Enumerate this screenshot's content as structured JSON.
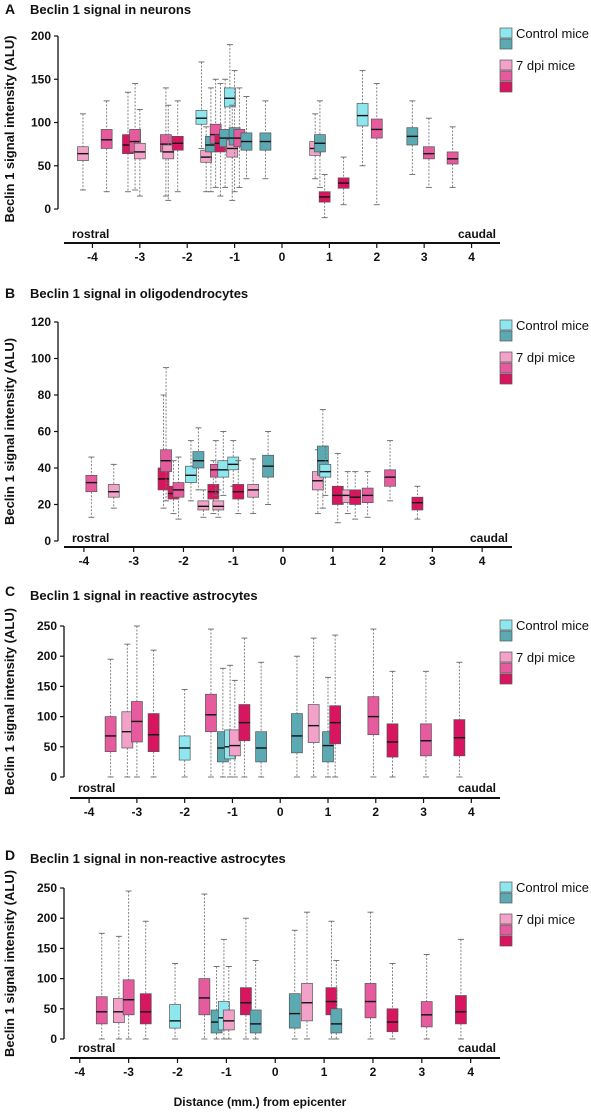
{
  "colors": {
    "control_light": "#8ee6ee",
    "control_dark": "#5ba9b3",
    "dpi_light": "#f2a2c8",
    "dpi_mid": "#e65a9e",
    "dpi_dark": "#d8155f"
  },
  "xlabel": "Distance (mm.) from epicenter",
  "chart_data": [
    {
      "type": "box",
      "panel_letter": "A",
      "title": "Beclin 1 signal in neurons",
      "ylabel": "Beclin 1 signal intensity (ALU)",
      "ylim": [
        -15,
        200
      ],
      "yticks": [
        0,
        50,
        100,
        150,
        200
      ],
      "xlim": [
        -4.6,
        4.6
      ],
      "xticks": [
        -4,
        -3,
        -2,
        -1,
        0,
        1,
        2,
        3,
        4
      ],
      "side_labels": {
        "left": "rostral",
        "right": "caudal"
      },
      "legend": [
        {
          "label": "Control mice",
          "colors": [
            "control_light",
            "control_dark"
          ]
        },
        {
          "label": "7 dpi mice",
          "colors": [
            "dpi_light",
            "dpi_mid",
            "dpi_dark"
          ]
        }
      ],
      "boxes": [
        {
          "x": -4.2,
          "c": "dpi_light",
          "q1": 56,
          "med": 64,
          "q3": 72,
          "lo": 22,
          "hi": 110
        },
        {
          "x": -3.7,
          "c": "dpi_mid",
          "q1": 70,
          "med": 80,
          "q3": 92,
          "lo": 20,
          "hi": 125
        },
        {
          "x": -3.25,
          "c": "dpi_dark",
          "q1": 64,
          "med": 74,
          "q3": 86,
          "lo": 20,
          "hi": 135
        },
        {
          "x": -3.1,
          "c": "dpi_mid",
          "q1": 66,
          "med": 78,
          "q3": 92,
          "lo": 22,
          "hi": 145
        },
        {
          "x": -3.0,
          "c": "dpi_light",
          "q1": 58,
          "med": 66,
          "q3": 76,
          "lo": 15,
          "hi": 115
        },
        {
          "x": -2.45,
          "c": "dpi_mid",
          "q1": 66,
          "med": 75,
          "q3": 86,
          "lo": 15,
          "hi": 140
        },
        {
          "x": -2.4,
          "c": "dpi_light",
          "q1": 58,
          "med": 66,
          "q3": 74,
          "lo": 10,
          "hi": 120
        },
        {
          "x": -2.2,
          "c": "dpi_dark",
          "q1": 68,
          "med": 76,
          "q3": 84,
          "lo": 20,
          "hi": 125
        },
        {
          "x": -1.7,
          "c": "control_light",
          "q1": 98,
          "med": 105,
          "q3": 114,
          "lo": 70,
          "hi": 170
        },
        {
          "x": -1.6,
          "c": "dpi_light",
          "q1": 54,
          "med": 60,
          "q3": 68,
          "lo": 20,
          "hi": 95
        },
        {
          "x": -1.5,
          "c": "control_dark",
          "q1": 66,
          "med": 74,
          "q3": 84,
          "lo": 20,
          "hi": 140
        },
        {
          "x": -1.4,
          "c": "dpi_mid",
          "q1": 76,
          "med": 86,
          "q3": 98,
          "lo": 25,
          "hi": 150
        },
        {
          "x": -1.3,
          "c": "dpi_dark",
          "q1": 66,
          "med": 76,
          "q3": 86,
          "lo": 15,
          "hi": 145
        },
        {
          "x": -1.2,
          "c": "control_dark",
          "q1": 72,
          "med": 82,
          "q3": 92,
          "lo": 25,
          "hi": 150
        },
        {
          "x": -1.1,
          "c": "control_light",
          "q1": 118,
          "med": 128,
          "q3": 140,
          "lo": 75,
          "hi": 190
        },
        {
          "x": -1.05,
          "c": "dpi_light",
          "q1": 60,
          "med": 70,
          "q3": 80,
          "lo": 10,
          "hi": 120
        },
        {
          "x": -1.0,
          "c": "control_dark",
          "q1": 74,
          "med": 82,
          "q3": 94,
          "lo": 20,
          "hi": 160
        },
        {
          "x": -0.9,
          "c": "dpi_mid",
          "q1": 72,
          "med": 82,
          "q3": 92,
          "lo": 25,
          "hi": 140
        },
        {
          "x": -0.75,
          "c": "control_dark",
          "q1": 68,
          "med": 78,
          "q3": 88,
          "lo": 35,
          "hi": 130
        },
        {
          "x": -0.35,
          "c": "control_dark",
          "q1": 68,
          "med": 78,
          "q3": 88,
          "lo": 35,
          "hi": 125
        },
        {
          "x": 0.7,
          "c": "dpi_light",
          "q1": 62,
          "med": 70,
          "q3": 78,
          "lo": 35,
          "hi": 110
        },
        {
          "x": 0.8,
          "c": "control_dark",
          "q1": 66,
          "med": 76,
          "q3": 86,
          "lo": 25,
          "hi": 125
        },
        {
          "x": 0.9,
          "c": "dpi_dark",
          "q1": 8,
          "med": 14,
          "q3": 20,
          "lo": -10,
          "hi": 40
        },
        {
          "x": 1.3,
          "c": "dpi_dark",
          "q1": 24,
          "med": 30,
          "q3": 36,
          "lo": 5,
          "hi": 60
        },
        {
          "x": 1.7,
          "c": "control_light",
          "q1": 96,
          "med": 108,
          "q3": 122,
          "lo": 50,
          "hi": 160
        },
        {
          "x": 2.0,
          "c": "dpi_mid",
          "q1": 82,
          "med": 92,
          "q3": 104,
          "lo": 5,
          "hi": 145
        },
        {
          "x": 2.75,
          "c": "control_dark",
          "q1": 74,
          "med": 84,
          "q3": 94,
          "lo": 40,
          "hi": 125
        },
        {
          "x": 3.1,
          "c": "dpi_mid",
          "q1": 58,
          "med": 64,
          "q3": 72,
          "lo": 25,
          "hi": 105
        },
        {
          "x": 3.6,
          "c": "dpi_mid",
          "q1": 52,
          "med": 58,
          "q3": 66,
          "lo": 25,
          "hi": 95
        }
      ]
    },
    {
      "type": "box",
      "panel_letter": "B",
      "title": "Beclin 1 signal in oligodendrocytes",
      "ylabel": "Beclin 1 signal intensity (ALU)",
      "ylim": [
        0,
        120
      ],
      "yticks": [
        0,
        20,
        40,
        60,
        80,
        100,
        120
      ],
      "xlim": [
        -4.4,
        4.6
      ],
      "xticks": [
        -4,
        -3,
        -2,
        -1,
        0,
        1,
        2,
        3,
        4
      ],
      "side_labels": {
        "left": "rostral",
        "right": "caudal"
      },
      "legend": [
        {
          "label": "Control mice",
          "colors": [
            "control_light",
            "control_dark"
          ]
        },
        {
          "label": "7 dpi mice",
          "colors": [
            "dpi_light",
            "dpi_mid",
            "dpi_dark"
          ]
        }
      ],
      "boxes": [
        {
          "x": -3.85,
          "c": "dpi_mid",
          "q1": 27,
          "med": 32,
          "q3": 36,
          "lo": 13,
          "hi": 46
        },
        {
          "x": -3.4,
          "c": "dpi_light",
          "q1": 24,
          "med": 27,
          "q3": 31,
          "lo": 18,
          "hi": 42
        },
        {
          "x": -2.4,
          "c": "dpi_dark",
          "q1": 28,
          "med": 34,
          "q3": 40,
          "lo": 18,
          "hi": 80
        },
        {
          "x": -2.35,
          "c": "dpi_mid",
          "q1": 38,
          "med": 44,
          "q3": 50,
          "lo": 22,
          "hi": 95
        },
        {
          "x": -2.2,
          "c": "dpi_dark",
          "q1": 23,
          "med": 26,
          "q3": 30,
          "lo": 15,
          "hi": 44
        },
        {
          "x": -2.1,
          "c": "dpi_mid",
          "q1": 24,
          "med": 28,
          "q3": 32,
          "lo": 12,
          "hi": 46
        },
        {
          "x": -1.85,
          "c": "control_light",
          "q1": 32,
          "med": 36,
          "q3": 41,
          "lo": 22,
          "hi": 55
        },
        {
          "x": -1.7,
          "c": "control_dark",
          "q1": 40,
          "med": 44,
          "q3": 49,
          "lo": 28,
          "hi": 62
        },
        {
          "x": -1.6,
          "c": "dpi_light",
          "q1": 17,
          "med": 19,
          "q3": 22,
          "lo": 13,
          "hi": 28
        },
        {
          "x": -1.4,
          "c": "dpi_dark",
          "q1": 23,
          "med": 27,
          "q3": 31,
          "lo": 15,
          "hi": 44
        },
        {
          "x": -1.35,
          "c": "dpi_mid",
          "q1": 35,
          "med": 39,
          "q3": 42,
          "lo": 25,
          "hi": 55
        },
        {
          "x": -1.3,
          "c": "dpi_light",
          "q1": 17,
          "med": 19,
          "q3": 22,
          "lo": 13,
          "hi": 28
        },
        {
          "x": -1.2,
          "c": "control_light",
          "q1": 35,
          "med": 39,
          "q3": 44,
          "lo": 25,
          "hi": 60
        },
        {
          "x": -1.0,
          "c": "control_light",
          "q1": 39,
          "med": 42,
          "q3": 46,
          "lo": 30,
          "hi": 55
        },
        {
          "x": -0.9,
          "c": "dpi_dark",
          "q1": 23,
          "med": 27,
          "q3": 31,
          "lo": 15,
          "hi": 44
        },
        {
          "x": -0.6,
          "c": "dpi_light",
          "q1": 24,
          "med": 28,
          "q3": 31,
          "lo": 15,
          "hi": 45
        },
        {
          "x": -0.3,
          "c": "control_dark",
          "q1": 35,
          "med": 41,
          "q3": 47,
          "lo": 20,
          "hi": 60
        },
        {
          "x": 0.7,
          "c": "dpi_light",
          "q1": 28,
          "med": 33,
          "q3": 38,
          "lo": 15,
          "hi": 50
        },
        {
          "x": 0.8,
          "c": "control_dark",
          "q1": 36,
          "med": 44,
          "q3": 52,
          "lo": 18,
          "hi": 72
        },
        {
          "x": 0.85,
          "c": "control_light",
          "q1": 35,
          "med": 38,
          "q3": 42,
          "lo": 25,
          "hi": 52
        },
        {
          "x": 1.1,
          "c": "dpi_dark",
          "q1": 20,
          "med": 25,
          "q3": 30,
          "lo": 10,
          "hi": 48
        },
        {
          "x": 1.3,
          "c": "dpi_light",
          "q1": 21,
          "med": 25,
          "q3": 28,
          "lo": 15,
          "hi": 38
        },
        {
          "x": 1.45,
          "c": "dpi_dark",
          "q1": 20,
          "med": 24,
          "q3": 28,
          "lo": 12,
          "hi": 38
        },
        {
          "x": 1.7,
          "c": "dpi_mid",
          "q1": 21,
          "med": 25,
          "q3": 29,
          "lo": 13,
          "hi": 38
        },
        {
          "x": 2.15,
          "c": "dpi_mid",
          "q1": 30,
          "med": 35,
          "q3": 39,
          "lo": 22,
          "hi": 55
        },
        {
          "x": 2.7,
          "c": "dpi_dark",
          "q1": 17,
          "med": 21,
          "q3": 24,
          "lo": 12,
          "hi": 30
        }
      ]
    },
    {
      "type": "box",
      "panel_letter": "C",
      "title": "Beclin 1 signal in reactive astrocytes",
      "ylabel": "Beclin 1 signal intensity (ALU)",
      "ylim": [
        -5,
        255
      ],
      "yticks": [
        0,
        50,
        100,
        150,
        200,
        250
      ],
      "xlim": [
        -4.4,
        4.6
      ],
      "xticks": [
        -4,
        -3,
        -2,
        -1,
        0,
        1,
        2,
        3,
        4
      ],
      "side_labels": {
        "left": "rostral",
        "right": "caudal"
      },
      "legend": [
        {
          "label": "Control mice",
          "colors": [
            "control_light",
            "control_dark"
          ]
        },
        {
          "label": "7 dpi mice",
          "colors": [
            "dpi_light",
            "dpi_mid",
            "dpi_dark"
          ]
        }
      ],
      "boxes": [
        {
          "x": -3.55,
          "c": "dpi_mid",
          "q1": 42,
          "med": 68,
          "q3": 100,
          "lo": 0,
          "hi": 195
        },
        {
          "x": -3.2,
          "c": "dpi_light",
          "q1": 48,
          "med": 75,
          "q3": 108,
          "lo": 0,
          "hi": 220
        },
        {
          "x": -3.0,
          "c": "dpi_mid",
          "q1": 58,
          "med": 92,
          "q3": 125,
          "lo": 0,
          "hi": 250
        },
        {
          "x": -2.65,
          "c": "dpi_dark",
          "q1": 42,
          "med": 70,
          "q3": 105,
          "lo": 0,
          "hi": 210
        },
        {
          "x": -2.0,
          "c": "control_light",
          "q1": 28,
          "med": 48,
          "q3": 68,
          "lo": 0,
          "hi": 145
        },
        {
          "x": -1.45,
          "c": "dpi_mid",
          "q1": 75,
          "med": 103,
          "q3": 137,
          "lo": 0,
          "hi": 245
        },
        {
          "x": -1.2,
          "c": "control_dark",
          "q1": 25,
          "med": 48,
          "q3": 75,
          "lo": 0,
          "hi": 180
        },
        {
          "x": -1.05,
          "c": "control_light",
          "q1": 30,
          "med": 50,
          "q3": 78,
          "lo": 0,
          "hi": 185
        },
        {
          "x": -0.95,
          "c": "dpi_light",
          "q1": 35,
          "med": 52,
          "q3": 78,
          "lo": 0,
          "hi": 160
        },
        {
          "x": -0.75,
          "c": "dpi_dark",
          "q1": 60,
          "med": 90,
          "q3": 120,
          "lo": 0,
          "hi": 230
        },
        {
          "x": -0.4,
          "c": "control_dark",
          "q1": 25,
          "med": 48,
          "q3": 75,
          "lo": 0,
          "hi": 190
        },
        {
          "x": 0.35,
          "c": "control_dark",
          "q1": 40,
          "med": 68,
          "q3": 105,
          "lo": 0,
          "hi": 200
        },
        {
          "x": 0.7,
          "c": "dpi_light",
          "q1": 57,
          "med": 85,
          "q3": 120,
          "lo": 0,
          "hi": 230
        },
        {
          "x": 1.0,
          "c": "control_dark",
          "q1": 25,
          "med": 52,
          "q3": 75,
          "lo": 0,
          "hi": 165
        },
        {
          "x": 1.15,
          "c": "dpi_dark",
          "q1": 55,
          "med": 90,
          "q3": 118,
          "lo": 0,
          "hi": 235
        },
        {
          "x": 1.95,
          "c": "dpi_mid",
          "q1": 70,
          "med": 100,
          "q3": 133,
          "lo": 0,
          "hi": 245
        },
        {
          "x": 2.35,
          "c": "dpi_dark",
          "q1": 33,
          "med": 58,
          "q3": 88,
          "lo": 0,
          "hi": 175
        },
        {
          "x": 3.05,
          "c": "dpi_mid",
          "q1": 35,
          "med": 60,
          "q3": 88,
          "lo": 0,
          "hi": 175
        },
        {
          "x": 3.75,
          "c": "dpi_dark",
          "q1": 35,
          "med": 65,
          "q3": 95,
          "lo": 0,
          "hi": 190
        }
      ]
    },
    {
      "type": "box",
      "panel_letter": "D",
      "title": "Beclin 1 signal in non-reactive astrocytes",
      "ylabel": "Beclin 1 signal intensity (ALU)",
      "ylim": [
        -5,
        255
      ],
      "yticks": [
        0,
        50,
        100,
        150,
        200,
        250
      ],
      "xlim": [
        -4.2,
        4.6
      ],
      "xticks": [
        -4,
        -3,
        -2,
        -1,
        0,
        1,
        2,
        3,
        4
      ],
      "side_labels": {
        "left": "rostral",
        "right": "caudal"
      },
      "legend": [
        {
          "label": "Control mice",
          "colors": [
            "control_light",
            "control_dark"
          ]
        },
        {
          "label": "7 dpi mice",
          "colors": [
            "dpi_light",
            "dpi_mid",
            "dpi_dark"
          ]
        }
      ],
      "boxes": [
        {
          "x": -3.55,
          "c": "dpi_mid",
          "q1": 25,
          "med": 45,
          "q3": 70,
          "lo": 0,
          "hi": 175
        },
        {
          "x": -3.2,
          "c": "dpi_light",
          "q1": 27,
          "med": 45,
          "q3": 67,
          "lo": 0,
          "hi": 170
        },
        {
          "x": -3.0,
          "c": "dpi_mid",
          "q1": 40,
          "med": 65,
          "q3": 98,
          "lo": 0,
          "hi": 245
        },
        {
          "x": -2.65,
          "c": "dpi_dark",
          "q1": 25,
          "med": 45,
          "q3": 75,
          "lo": 0,
          "hi": 195
        },
        {
          "x": -2.05,
          "c": "control_light",
          "q1": 18,
          "med": 30,
          "q3": 57,
          "lo": 0,
          "hi": 125
        },
        {
          "x": -1.45,
          "c": "dpi_mid",
          "q1": 40,
          "med": 68,
          "q3": 100,
          "lo": 0,
          "hi": 240
        },
        {
          "x": -1.2,
          "c": "control_dark",
          "q1": 10,
          "med": 28,
          "q3": 48,
          "lo": 0,
          "hi": 120
        },
        {
          "x": -1.05,
          "c": "control_light",
          "q1": 15,
          "med": 35,
          "q3": 62,
          "lo": 0,
          "hi": 165
        },
        {
          "x": -0.95,
          "c": "dpi_light",
          "q1": 15,
          "med": 30,
          "q3": 48,
          "lo": 0,
          "hi": 120
        },
        {
          "x": -0.6,
          "c": "dpi_dark",
          "q1": 40,
          "med": 60,
          "q3": 85,
          "lo": 0,
          "hi": 200
        },
        {
          "x": -0.4,
          "c": "control_dark",
          "q1": 10,
          "med": 25,
          "q3": 48,
          "lo": 0,
          "hi": 130
        },
        {
          "x": 0.4,
          "c": "control_dark",
          "q1": 18,
          "med": 42,
          "q3": 75,
          "lo": 0,
          "hi": 180
        },
        {
          "x": 0.65,
          "c": "dpi_light",
          "q1": 30,
          "med": 60,
          "q3": 92,
          "lo": 0,
          "hi": 210
        },
        {
          "x": 1.15,
          "c": "dpi_dark",
          "q1": 40,
          "med": 62,
          "q3": 85,
          "lo": 0,
          "hi": 195
        },
        {
          "x": 1.25,
          "c": "control_dark",
          "q1": 10,
          "med": 25,
          "q3": 50,
          "lo": 0,
          "hi": 130
        },
        {
          "x": 1.95,
          "c": "dpi_mid",
          "q1": 35,
          "med": 62,
          "q3": 92,
          "lo": 0,
          "hi": 210
        },
        {
          "x": 2.4,
          "c": "dpi_dark",
          "q1": 12,
          "med": 28,
          "q3": 50,
          "lo": 0,
          "hi": 125
        },
        {
          "x": 3.1,
          "c": "dpi_mid",
          "q1": 20,
          "med": 40,
          "q3": 62,
          "lo": 0,
          "hi": 140
        },
        {
          "x": 3.8,
          "c": "dpi_dark",
          "q1": 25,
          "med": 45,
          "q3": 72,
          "lo": 0,
          "hi": 165
        }
      ]
    }
  ]
}
